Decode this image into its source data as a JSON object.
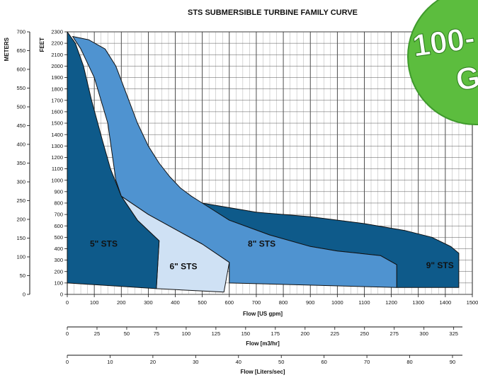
{
  "chart_data": {
    "type": "area",
    "title": "STS SUBMERSIBLE TURBINE FAMILY CURVE",
    "x": {
      "label": "Flow [US gpm]",
      "range": [
        0,
        1500
      ],
      "ticks": [
        0,
        100,
        200,
        300,
        400,
        500,
        600,
        700,
        800,
        900,
        1000,
        1100,
        1200,
        1300,
        1400,
        1500
      ]
    },
    "y": {
      "label": "FEET",
      "range": [
        0,
        2300
      ],
      "ticks": [
        0,
        100,
        200,
        300,
        400,
        500,
        600,
        700,
        800,
        900,
        1000,
        1100,
        1200,
        1300,
        1400,
        1500,
        1600,
        1700,
        1800,
        1900,
        2000,
        2100,
        2200,
        2300
      ]
    },
    "y_secondary": {
      "label": "METERS",
      "range": [
        0,
        700
      ],
      "ticks": [
        0,
        50,
        100,
        150,
        200,
        250,
        300,
        350,
        400,
        450,
        500,
        550,
        600,
        650,
        700
      ]
    },
    "x_secondary": [
      {
        "label": "Flow [m3/hr]",
        "ticks": [
          0,
          25,
          50,
          75,
          100,
          125,
          150,
          175,
          200,
          225,
          250,
          275,
          300,
          325
        ],
        "gpm_per_unit": 4.4029
      },
      {
        "label": "Flow [Liters/sec]",
        "ticks": [
          0,
          10,
          20,
          30,
          40,
          50,
          60,
          70,
          80,
          90
        ],
        "gpm_per_unit": 15.8503
      }
    ],
    "grid": true,
    "series": [
      {
        "name": "9\" STS",
        "color": "#0e5a8a",
        "label_at": [
          1380,
          230
        ],
        "outline": [
          [
            500,
            800
          ],
          [
            700,
            720
          ],
          [
            900,
            680
          ],
          [
            1100,
            620
          ],
          [
            1250,
            560
          ],
          [
            1350,
            500
          ],
          [
            1420,
            420
          ],
          [
            1450,
            360
          ],
          [
            1450,
            60
          ],
          [
            1220,
            60
          ],
          [
            1220,
            260
          ],
          [
            1160,
            340
          ],
          [
            1000,
            380
          ],
          [
            900,
            420
          ],
          [
            750,
            520
          ],
          [
            600,
            650
          ],
          [
            500,
            790
          ]
        ]
      },
      {
        "name": "8\" STS",
        "color": "#4f93d0",
        "label_at": [
          720,
          420
        ],
        "outline": [
          [
            20,
            2260
          ],
          [
            80,
            2230
          ],
          [
            140,
            2150
          ],
          [
            180,
            2000
          ],
          [
            220,
            1750
          ],
          [
            260,
            1500
          ],
          [
            300,
            1300
          ],
          [
            340,
            1150
          ],
          [
            380,
            1030
          ],
          [
            420,
            930
          ],
          [
            460,
            860
          ],
          [
            500,
            800
          ],
          [
            600,
            650
          ],
          [
            750,
            520
          ],
          [
            900,
            420
          ],
          [
            1000,
            380
          ],
          [
            1160,
            340
          ],
          [
            1220,
            260
          ],
          [
            1220,
            60
          ],
          [
            920,
            80
          ],
          [
            600,
            100
          ],
          [
            600,
            280
          ],
          [
            500,
            440
          ],
          [
            400,
            570
          ],
          [
            300,
            700
          ],
          [
            200,
            860
          ],
          [
            180,
            1000
          ],
          [
            150,
            1500
          ],
          [
            100,
            1900
          ],
          [
            50,
            2150
          ],
          [
            20,
            2260
          ]
        ]
      },
      {
        "name": "6\" STS",
        "color": "#cfe1f4",
        "label_at": [
          430,
          220
        ],
        "outline": [
          [
            200,
            860
          ],
          [
            300,
            700
          ],
          [
            400,
            570
          ],
          [
            500,
            440
          ],
          [
            600,
            280
          ],
          [
            580,
            20
          ],
          [
            330,
            50
          ],
          [
            340,
            470
          ],
          [
            260,
            650
          ],
          [
            200,
            860
          ]
        ]
      },
      {
        "name": "5\" STS",
        "color": "#0e5a8a",
        "label_at": [
          135,
          420
        ],
        "outline": [
          [
            0,
            2300
          ],
          [
            30,
            2200
          ],
          [
            60,
            2000
          ],
          [
            90,
            1700
          ],
          [
            130,
            1350
          ],
          [
            160,
            1100
          ],
          [
            200,
            860
          ],
          [
            260,
            650
          ],
          [
            340,
            470
          ],
          [
            330,
            50
          ],
          [
            0,
            100
          ]
        ]
      }
    ]
  },
  "badge": {
    "line1": "100-",
    "line2": "G",
    "color": "#5cbd3e"
  }
}
